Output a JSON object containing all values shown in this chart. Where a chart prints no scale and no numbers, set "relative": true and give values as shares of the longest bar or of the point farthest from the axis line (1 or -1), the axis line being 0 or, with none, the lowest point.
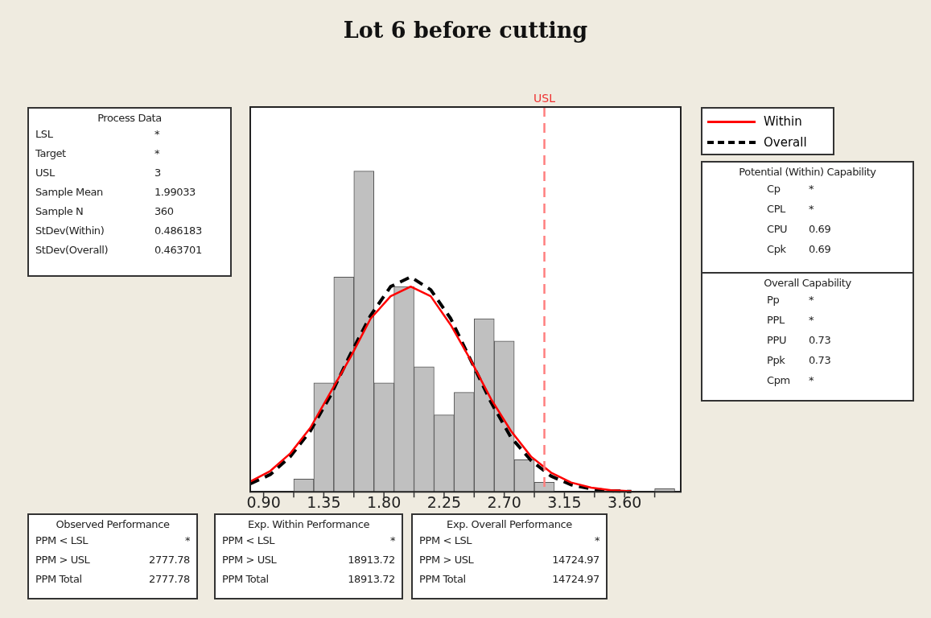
{
  "chart_data": {
    "type": "histogram",
    "title": "Lot 6 before cutting",
    "relative": true,
    "bins": [
      1.125,
      1.275,
      1.425,
      1.575,
      1.725,
      1.875,
      2.025,
      2.175,
      2.325,
      2.475,
      2.625,
      2.775,
      2.925,
      3.075,
      3.225,
      3.375,
      3.525,
      3.675,
      3.825,
      3.975
    ],
    "values": [
      0.04,
      0.34,
      0.67,
      1,
      0.34,
      0.64,
      0.39,
      0.24,
      0.31,
      0.54,
      0.47,
      0.1,
      0.03,
      0,
      0,
      0,
      0,
      0,
      0.01
    ],
    "color": "#c0c0c0",
    "series": [
      {
        "name": "Within",
        "type": "line",
        "color": "#ff0000",
        "line_style": "solid",
        "x": [
          0.8,
          0.95,
          1.1,
          1.25,
          1.4,
          1.55,
          1.7,
          1.85,
          2.0,
          2.15,
          2.3,
          2.45,
          2.6,
          2.75,
          2.9,
          3.05,
          3.2,
          3.35,
          3.5,
          3.65
        ],
        "values": [
          0.032,
          0.065,
          0.12,
          0.2,
          0.31,
          0.42,
          0.54,
          0.61,
          0.64,
          0.61,
          0.52,
          0.41,
          0.29,
          0.19,
          0.11,
          0.06,
          0.029,
          0.013,
          0.005,
          0.002
        ]
      },
      {
        "name": "Overall",
        "type": "line",
        "color": "#000000",
        "line_style": "dashed",
        "x": [
          0.8,
          0.95,
          1.1,
          1.25,
          1.4,
          1.55,
          1.7,
          1.85,
          2.0,
          2.15,
          2.3,
          2.45,
          2.6,
          2.75,
          2.9,
          3.05,
          3.2,
          3.35,
          3.5,
          3.65
        ],
        "values": [
          0.025,
          0.054,
          0.11,
          0.19,
          0.3,
          0.43,
          0.55,
          0.64,
          0.67,
          0.63,
          0.54,
          0.41,
          0.28,
          0.17,
          0.098,
          0.049,
          0.022,
          0.009,
          0.003,
          0.001
        ]
      }
    ],
    "xlim": [
      0.8,
      4.02
    ],
    "xticks": [
      {
        "value": 0.9,
        "label": "0.90"
      },
      {
        "value": 1.125,
        "label": null
      },
      {
        "value": 1.35,
        "label": "1.35"
      },
      {
        "value": 1.575,
        "label": null
      },
      {
        "value": 1.8,
        "label": "1.80"
      },
      {
        "value": 2.025,
        "label": null
      },
      {
        "value": 2.25,
        "label": "2.25"
      },
      {
        "value": 2.475,
        "label": null
      },
      {
        "value": 2.7,
        "label": "2.70"
      },
      {
        "value": 2.925,
        "label": null
      },
      {
        "value": 3.15,
        "label": "3.15"
      },
      {
        "value": 3.375,
        "label": null
      },
      {
        "value": 3.6,
        "label": "3.60"
      },
      {
        "value": 3.825,
        "label": null
      }
    ],
    "ref_lines": [
      {
        "axis": "x",
        "value": 3,
        "label": "USL",
        "color": "#ff7f7f",
        "line_style": "dashed"
      }
    ],
    "legend": "top right",
    "marker": "none",
    "grid": false,
    "annotations": [
      "Process Data",
      "LSL",
      "*",
      "Target",
      "*",
      "USL",
      "3",
      "Sample Mean",
      "1.99033",
      "Sample N",
      "360",
      "StDev(Within)",
      "0.486183",
      "StDev(Overall)",
      "0.463701",
      "Potential (Within) Capability",
      "Cp",
      "*",
      "CPL",
      "*",
      "CPU",
      "0.69",
      "Cpk",
      "0.69",
      "Overall Capability",
      "Pp",
      "*",
      "PPL",
      "*",
      "PPU",
      "0.73",
      "Ppk",
      "0.73",
      "Cpm",
      "*",
      "Observed Performance",
      "PPM < LSL",
      "*",
      "PPM > USL",
      "2777.78",
      "PPM Total",
      "2777.78",
      "Exp. Within Performance",
      "PPM < LSL",
      "*",
      "PPM > USL",
      "18913.72",
      "PPM Total",
      "18913.72",
      "Exp. Overall Performance",
      "PPM < LSL",
      "*",
      "PPM > USL",
      "14724.97",
      "PPM Total",
      "14724.97"
    ]
  }
}
